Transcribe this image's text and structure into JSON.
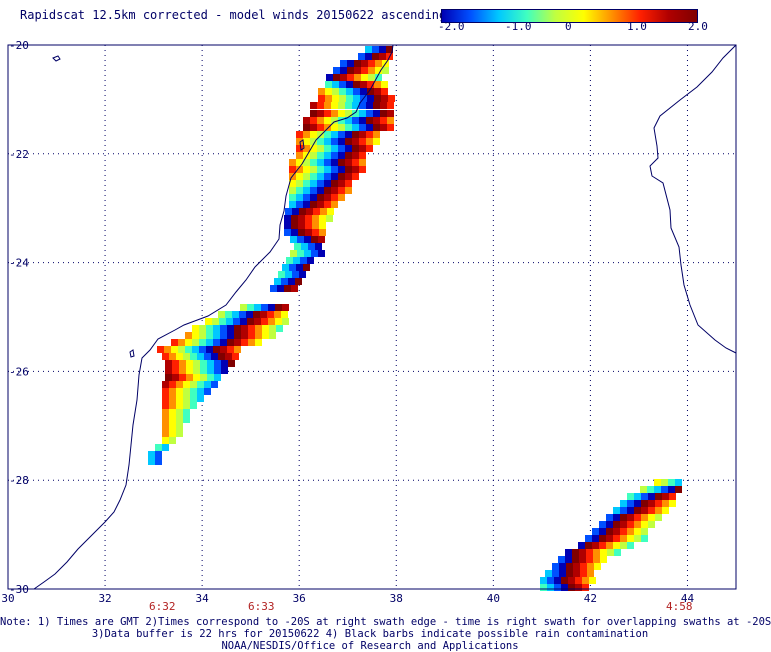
{
  "title": "Rapidscat 12.5km corrected - model winds 20150622 ascending",
  "colorbar": {
    "ticks": [
      "-2.0",
      "-1.0",
      "0",
      "1.0",
      "2.0"
    ],
    "colors": [
      "#0000b4",
      "#0050ff",
      "#00c8ff",
      "#40ffc0",
      "#c0ff40",
      "#ffff00",
      "#ff9000",
      "#ff2000",
      "#b00000",
      "#800000"
    ]
  },
  "map": {
    "lon_range": [
      30,
      45
    ],
    "lat_range": [
      -30,
      -20
    ],
    "x_ticks": [
      "30",
      "32",
      "34",
      "36",
      "38",
      "40",
      "42",
      "44"
    ],
    "y_ticks": [
      "-20",
      "-22",
      "-24",
      "-26",
      "-28",
      "-30"
    ],
    "time_labels": [
      "6:32",
      "6:33",
      "4:58"
    ]
  },
  "notes": [
    "Note: 1) Times are GMT 2)Times correspond to -20S at right swath edge - time is right swath for overlapping swaths at -20S",
    "3)Data buffer is 22 hrs for 20150622 4) Black barbs indicate possible rain contamination",
    "NOAA/NESDIS/Office of Research and Applications"
  ]
}
